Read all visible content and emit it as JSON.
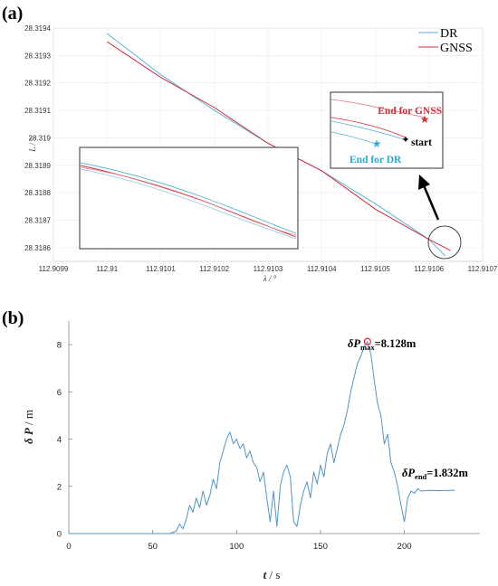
{
  "panels": {
    "a": {
      "label": "(a)"
    },
    "b": {
      "label": "(b)"
    }
  },
  "chart_data": [
    {
      "type": "line",
      "panel": "(a)",
      "xlabel": "λ / °",
      "ylabel": "L / °",
      "xlim": [
        112.9099,
        112.9107
      ],
      "ylim": [
        28.31855,
        28.3194
      ],
      "x_ticks": [
        "112.9099",
        "112.91",
        "112.9101",
        "112.9102",
        "112.9103",
        "112.9104",
        "112.9105",
        "112.9106",
        "112.9107"
      ],
      "y_ticks": [
        "28.3194",
        "28.3193",
        "28.3192",
        "28.3191",
        "28.319",
        "28.3189",
        "28.3188",
        "28.3187",
        "28.3186"
      ],
      "grid": true,
      "legend": "top-right",
      "colors": {
        "DR": "#5bb3d6",
        "GNSS": "#d62a3a"
      },
      "series": [
        {
          "name": "DR",
          "x": [
            112.91,
            112.9101,
            112.9102,
            112.9103,
            112.9104,
            112.9105,
            112.9106,
            112.91063
          ],
          "y": [
            28.31938,
            28.31923,
            28.3191,
            28.31898,
            28.31888,
            28.31876,
            28.31863,
            28.31857
          ]
        },
        {
          "name": "GNSS",
          "x": [
            112.91,
            112.9101,
            112.9102,
            112.9103,
            112.9104,
            112.9105,
            112.9106,
            112.91064
          ],
          "y": [
            28.31935,
            28.31922,
            28.31911,
            28.31898,
            28.31888,
            28.31874,
            28.31863,
            28.31859
          ]
        }
      ],
      "annotations": {
        "end_gnss": "End for GNSS",
        "end_dr": "End for DR",
        "start": "start"
      }
    },
    {
      "type": "line",
      "panel": "(b)",
      "xlabel_symbol": "t",
      "xlabel_unit": " / s",
      "ylabel_symbol": "δ P",
      "ylabel_unit": " / m",
      "xlim": [
        0,
        245
      ],
      "ylim": [
        0,
        9
      ],
      "x_ticks": [
        0,
        50,
        100,
        150,
        200
      ],
      "y_ticks": [
        0,
        2,
        4,
        6,
        8
      ],
      "color": "#4f94c9",
      "x": [
        0,
        60,
        64,
        66,
        68,
        70,
        72,
        74,
        76,
        78,
        80,
        82,
        84,
        86,
        88,
        90,
        92,
        94,
        96,
        98,
        100,
        102,
        104,
        106,
        108,
        110,
        112,
        114,
        116,
        118,
        120,
        122,
        124,
        126,
        128,
        130,
        132,
        134,
        136,
        138,
        140,
        142,
        144,
        146,
        148,
        150,
        152,
        154,
        156,
        158,
        160,
        162,
        164,
        166,
        168,
        170,
        172,
        174,
        176,
        178,
        180,
        182,
        184,
        186,
        188,
        190,
        192,
        194,
        196,
        198,
        200,
        202,
        204,
        206,
        208,
        210,
        215,
        220,
        225,
        230
      ],
      "y": [
        0,
        0,
        0.1,
        0.4,
        0.2,
        0.6,
        1.2,
        0.9,
        1.5,
        1.1,
        1.8,
        1.2,
        1.6,
        2.3,
        1.9,
        3.0,
        3.5,
        4.0,
        4.3,
        3.8,
        4.0,
        3.6,
        3.8,
        3.2,
        3.5,
        3.0,
        2.8,
        2.2,
        2.6,
        1.5,
        0.5,
        1.8,
        0.3,
        2.0,
        2.6,
        2.9,
        2.4,
        0.5,
        0.3,
        1.2,
        1.8,
        2.2,
        1.5,
        2.6,
        2.1,
        2.9,
        2.4,
        3.4,
        3.8,
        3.0,
        3.6,
        4.2,
        4.6,
        5.2,
        6.0,
        6.6,
        7.2,
        7.5,
        7.9,
        8.128,
        7.6,
        6.5,
        5.5,
        5.0,
        3.8,
        4.2,
        3.0,
        2.6,
        2.0,
        1.2,
        0.5,
        1.5,
        1.8,
        1.7,
        1.9,
        1.8,
        1.83,
        1.82,
        1.83,
        1.832
      ],
      "annotations": {
        "max": {
          "symbol": "δP",
          "sub": "max",
          "value": "=8.128m",
          "t": 178,
          "v": 8.128
        },
        "end": {
          "symbol": "δP",
          "sub": "end",
          "value": "=1.832m"
        }
      }
    }
  ]
}
